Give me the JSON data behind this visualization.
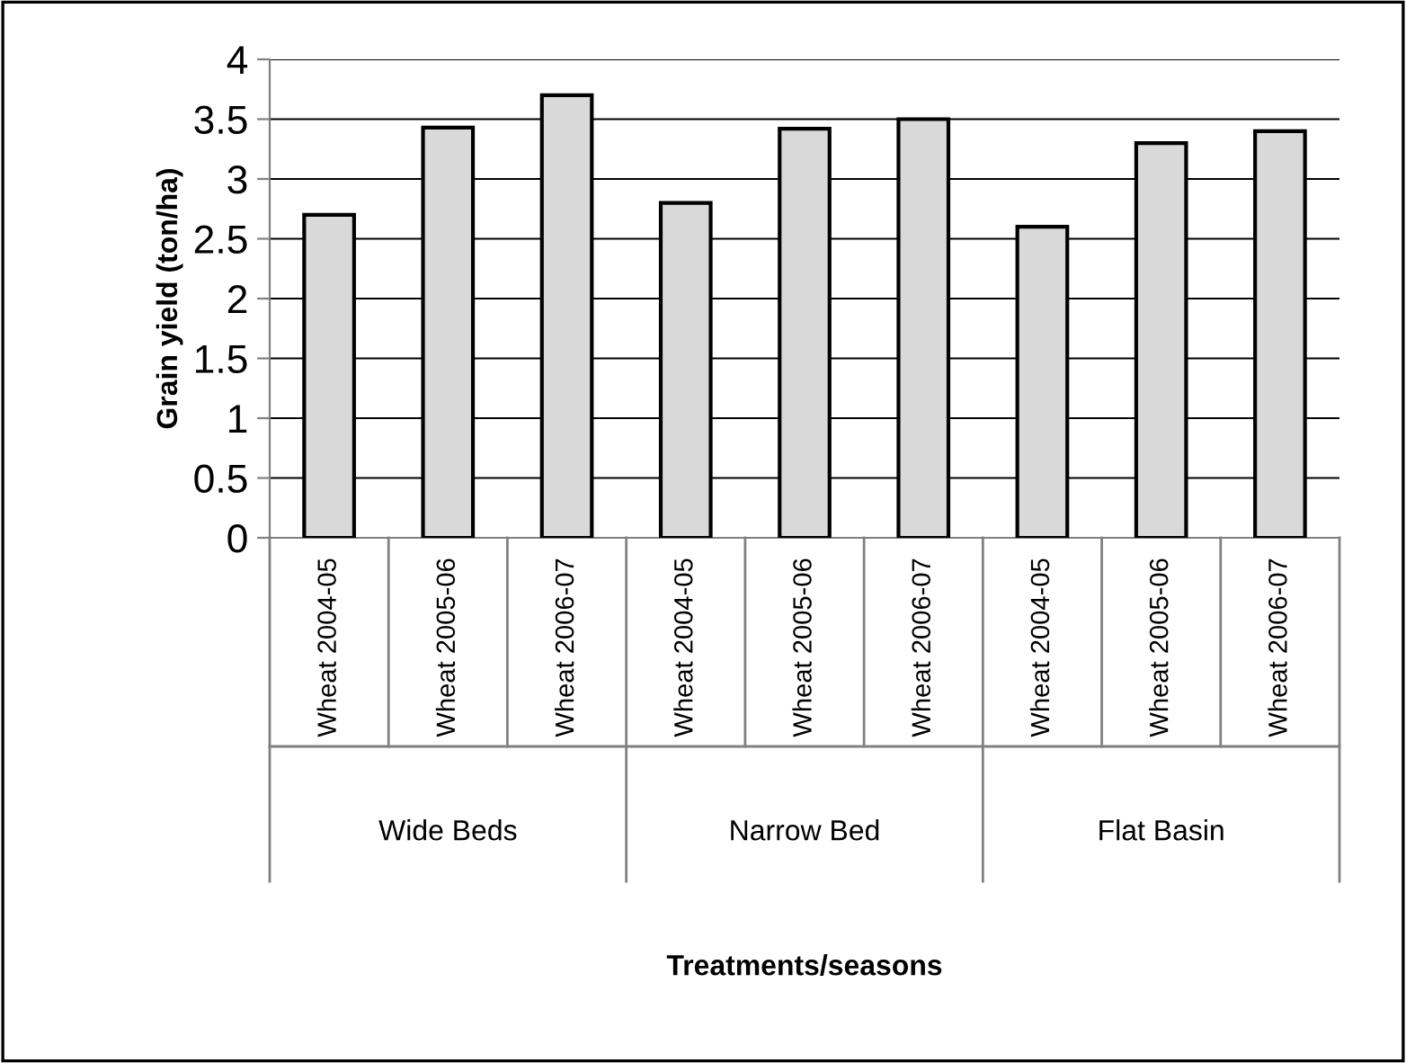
{
  "chart_data": {
    "type": "bar",
    "categories": [
      "Wheat 2004-05",
      "Wheat 2005-06",
      "Wheat 2006-07",
      "Wheat 2004-05",
      "Wheat 2005-06",
      "Wheat 2006-07",
      "Wheat 2004-05",
      "Wheat 2005-06",
      "Wheat 2006-07"
    ],
    "values": [
      2.7,
      3.43,
      3.7,
      2.8,
      3.42,
      3.5,
      2.6,
      3.3,
      3.4
    ],
    "color": "#d9d9d9",
    "ylabel": "Grain yield (ton/ha)",
    "annotations": [
      "Wide Beds",
      "Narrow Bed",
      "Flat Basin",
      "Treatments/seasons"
    ],
    "ylim": [
      0,
      4
    ],
    "yticks": [
      0,
      0.5,
      1,
      1.5,
      2,
      2.5,
      3,
      3.5,
      4
    ],
    "grid": "y"
  }
}
